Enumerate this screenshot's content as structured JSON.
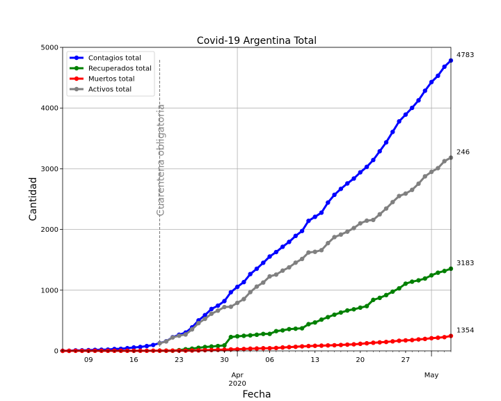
{
  "chart_data": {
    "type": "line",
    "title": "Covid-19 Argentina Total",
    "xlabel": "Fecha",
    "ylabel": "Cantidad",
    "ylim": [
      0,
      5000
    ],
    "yticks": [
      0,
      1000,
      2000,
      3000,
      4000,
      5000
    ],
    "x_start": "2020-03-05",
    "x_end": "2020-05-04",
    "x_tick_labels": [
      {
        "day": 4,
        "label": "09"
      },
      {
        "day": 11,
        "label": "16"
      },
      {
        "day": 18,
        "label": "23"
      },
      {
        "day": 25,
        "label": "30"
      },
      {
        "day": 32,
        "label": "06"
      },
      {
        "day": 39,
        "label": "13"
      },
      {
        "day": 46,
        "label": "20"
      },
      {
        "day": 53,
        "label": "27"
      }
    ],
    "x_major_labels": [
      {
        "day": 27,
        "label": "Apr",
        "sublabel": "2020"
      },
      {
        "day": 57,
        "label": "May",
        "sublabel": ""
      }
    ],
    "grid": true,
    "legend_position": "top-left",
    "annotation": {
      "text": "Cuarentena obligatoria",
      "day": 15
    },
    "series": [
      {
        "name": "Contagios total",
        "color": "#0000ff",
        "start_day": 0,
        "values": [
          1,
          2,
          8,
          9,
          12,
          17,
          19,
          21,
          31,
          34,
          45,
          56,
          65,
          79,
          97,
          128,
          158,
          225,
          266,
          301,
          387,
          502,
          589,
          690,
          745,
          820,
          966,
          1054,
          1133,
          1265,
          1353,
          1451,
          1554,
          1628,
          1715,
          1795,
          1894,
          1975,
          2142,
          2208,
          2277,
          2443,
          2571,
          2669,
          2758,
          2839,
          2941,
          3031,
          3144,
          3288,
          3435,
          3607,
          3780,
          3892,
          4003,
          4127,
          4285,
          4428,
          4532,
          4681,
          4783
        ]
      },
      {
        "name": "Recuperados total",
        "color": "#008000",
        "start_day": 15,
        "values": [
          3,
          3,
          3,
          12,
          27,
          37,
          51,
          63,
          72,
          80,
          91,
          228,
          240,
          248,
          256,
          266,
          279,
          280,
          325,
          338,
          358,
          365,
          372,
          440,
          468,
          515,
          556,
          596,
          632,
          665,
          685,
          712,
          737,
          840,
          873,
          919,
          976,
          1030,
          1107,
          1140,
          1162,
          1192,
          1245,
          1288,
          1316,
          1354
        ]
      },
      {
        "name": "Muertos total",
        "color": "#ff0000",
        "start_day": 0,
        "values": [
          0,
          0,
          1,
          1,
          1,
          2,
          2,
          2,
          2,
          2,
          2,
          2,
          2,
          2,
          3,
          3,
          3,
          4,
          4,
          4,
          6,
          8,
          11,
          14,
          18,
          20,
          24,
          27,
          31,
          36,
          39,
          43,
          44,
          48,
          56,
          62,
          67,
          74,
          79,
          83,
          86,
          90,
          93,
          97,
          103,
          108,
          116,
          125,
          134,
          140,
          147,
          157,
          167,
          173,
          178,
          189,
          197,
          209,
          217,
          226,
          246
        ]
      },
      {
        "name": "Activos total",
        "color": "#808080",
        "start_day": 15,
        "values": [
          125,
          155,
          221,
          250,
          270,
          354,
          457,
          527,
          612,
          663,
          722,
          727,
          791,
          853,
          968,
          1059,
          1126,
          1227,
          1257,
          1322,
          1376,
          1453,
          1514,
          1621,
          1632,
          1659,
          1775,
          1874,
          1916,
          1964,
          2023,
          2101,
          2145,
          2157,
          2249,
          2345,
          2451,
          2551,
          2591,
          2652,
          2754,
          2875,
          2949,
          3010,
          3125,
          3183
        ]
      }
    ],
    "end_labels": [
      "4783",
      "3183",
      "1354",
      "246"
    ]
  }
}
